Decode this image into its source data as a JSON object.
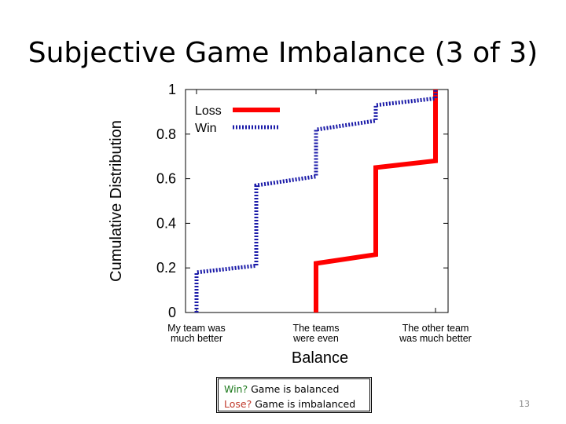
{
  "slide": {
    "title": "Subjective Game Imbalance (3 of 3)",
    "page_number": "13"
  },
  "note": {
    "line1_q": "Win?",
    "line1_text": " Game is balanced",
    "line2_q": "Lose?",
    "line2_text": " Game is imbalanced"
  },
  "chart_data": {
    "type": "line",
    "step": true,
    "xlabel": "Balance",
    "ylabel": "Cumulative Distribution",
    "x_categories": [
      [
        "My team was",
        "much better"
      ],
      [
        "The teams",
        "were even"
      ],
      [
        "The other team",
        "was much better"
      ]
    ],
    "ylim": [
      0,
      1
    ],
    "yticks": [
      "0",
      "0.2",
      "0.4",
      "0.6",
      "0.8",
      "1"
    ],
    "legend_position": "top-left",
    "series": [
      {
        "name": "Loss",
        "color": "#ff0000",
        "style": "solid",
        "points": [
          [
            1,
            0
          ],
          [
            1,
            0.22
          ],
          [
            1.5,
            0.26
          ],
          [
            1.5,
            0.65
          ],
          [
            2,
            0.68
          ],
          [
            2,
            1.0
          ]
        ]
      },
      {
        "name": "Win",
        "color": "#1a1aa8",
        "style": "dotted",
        "points": [
          [
            0,
            0
          ],
          [
            0,
            0.18
          ],
          [
            0.5,
            0.21
          ],
          [
            0.5,
            0.57
          ],
          [
            1,
            0.61
          ],
          [
            1,
            0.82
          ],
          [
            1.5,
            0.86
          ],
          [
            1.5,
            0.93
          ],
          [
            2,
            0.96
          ],
          [
            2,
            1.0
          ]
        ]
      }
    ]
  }
}
